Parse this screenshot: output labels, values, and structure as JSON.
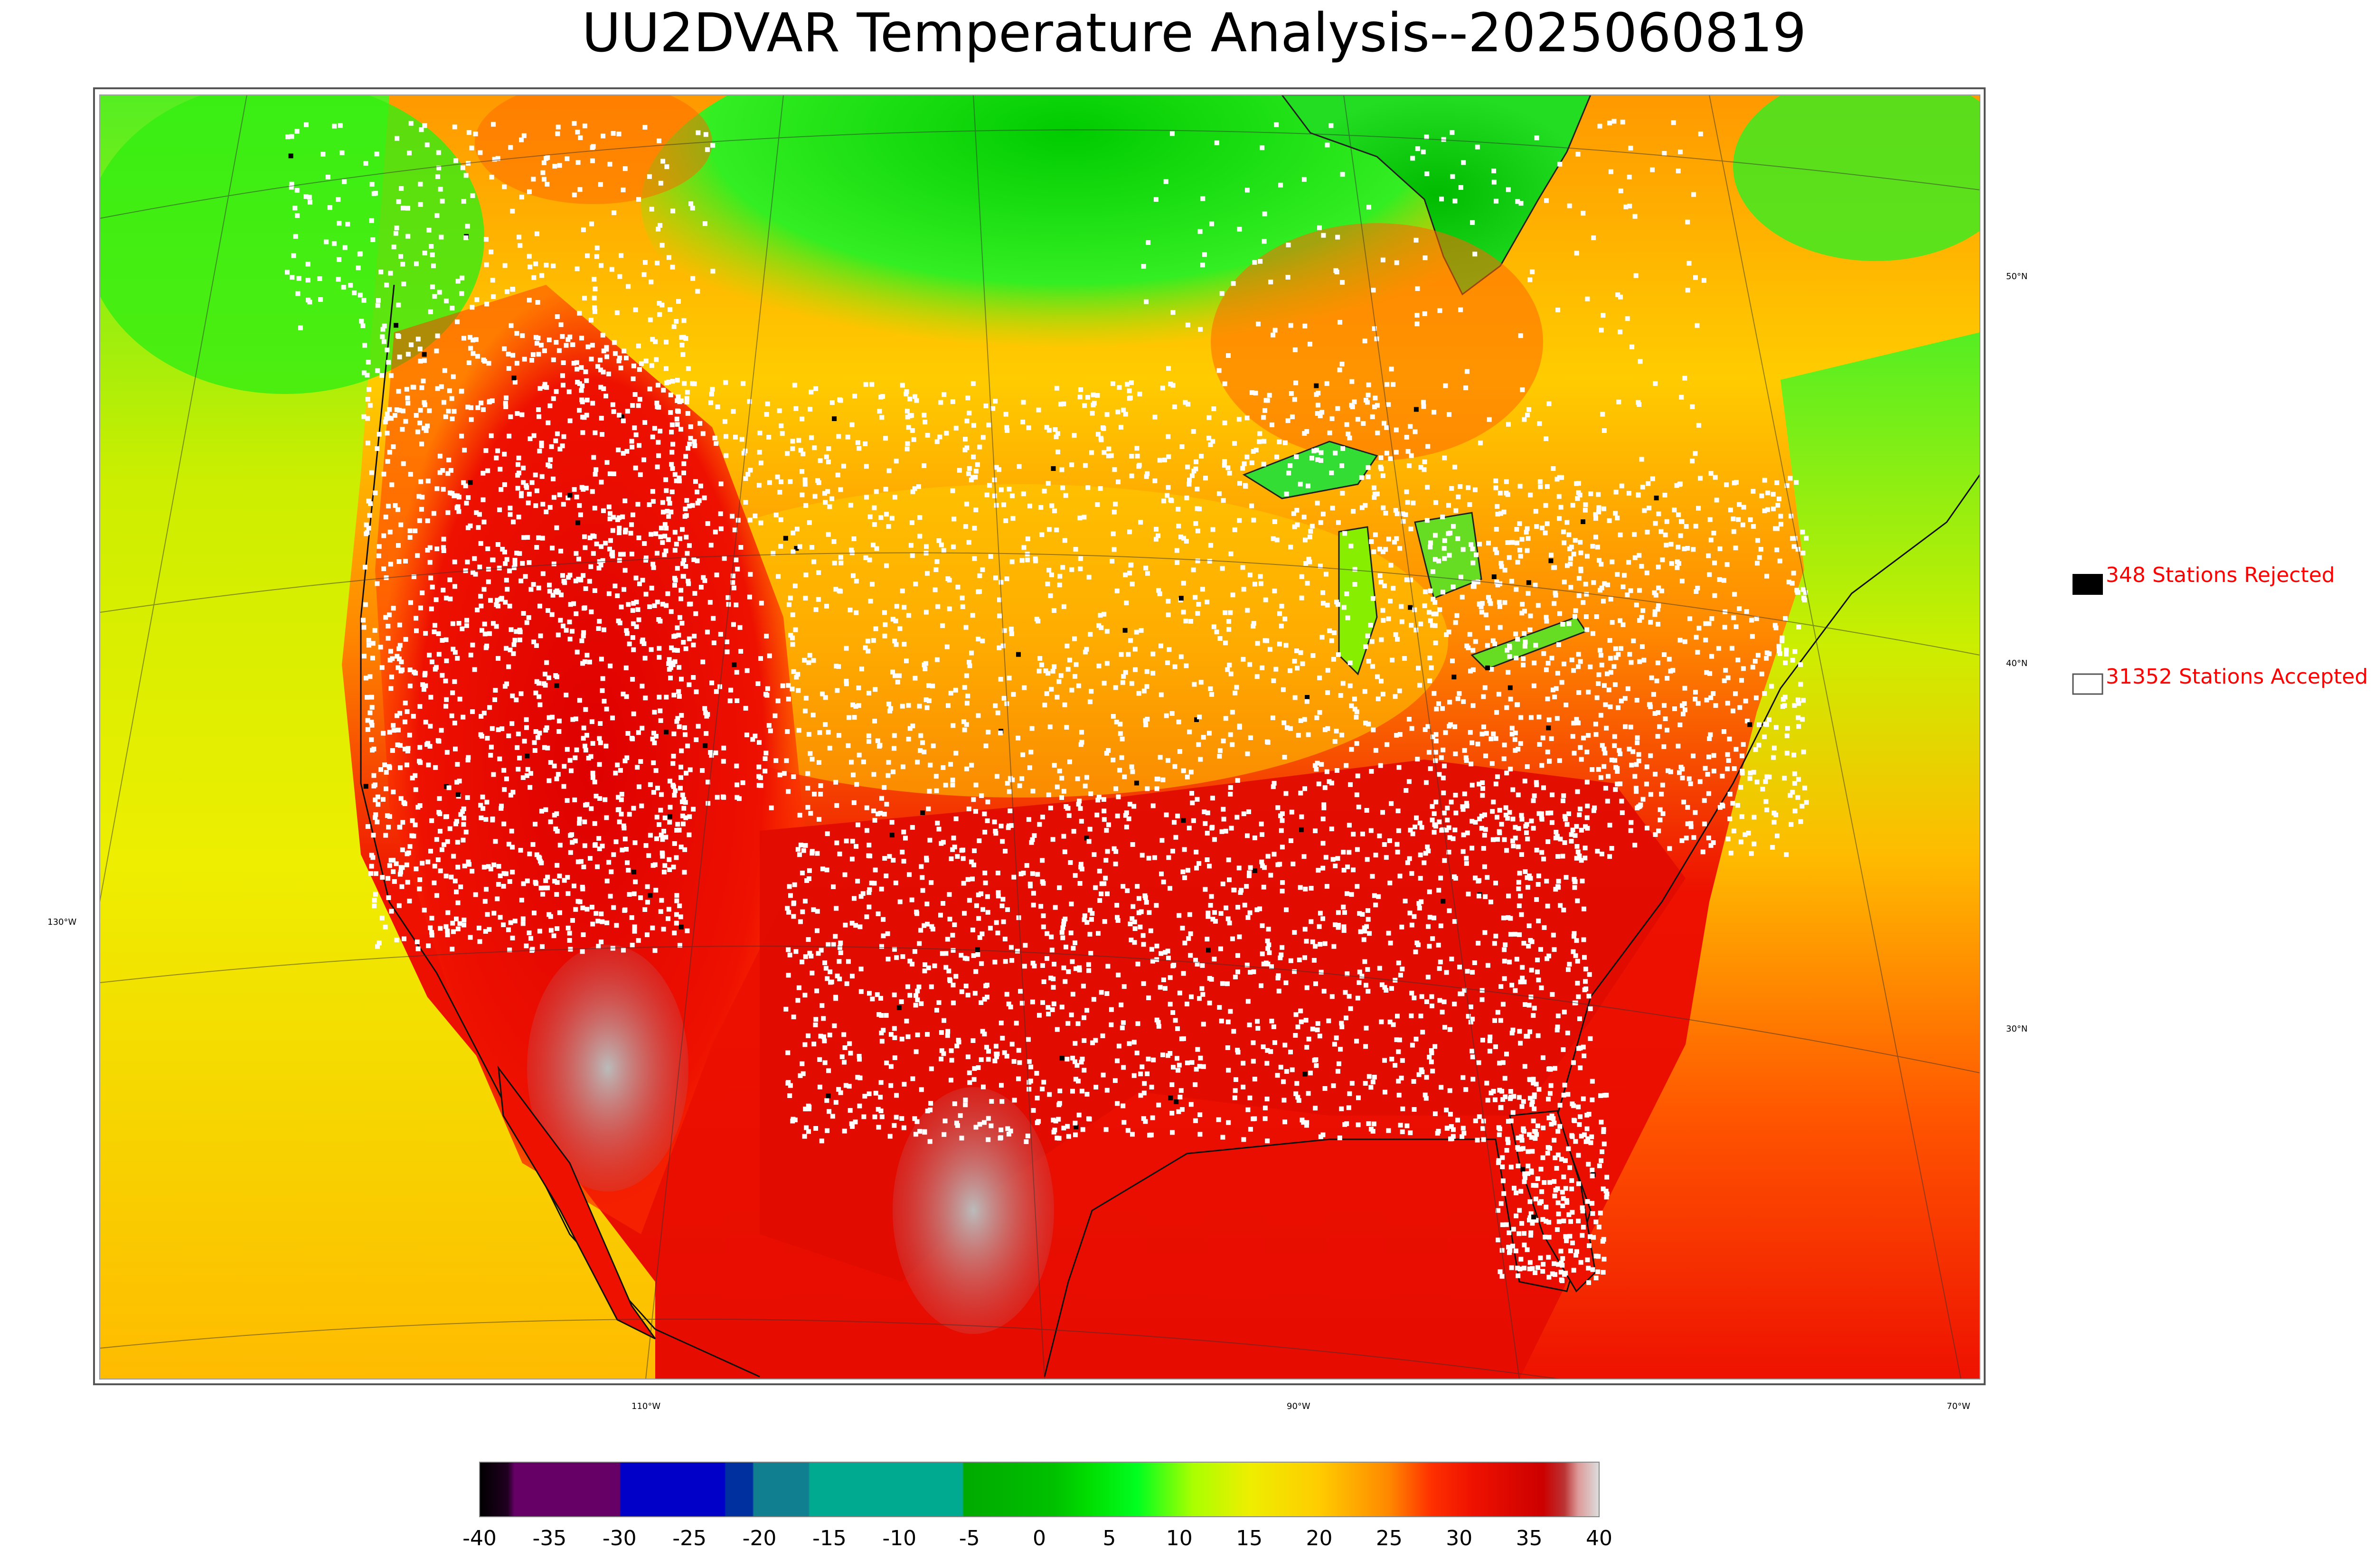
{
  "title": "UU2DVAR Temperature Analysis--2025060819",
  "map": {
    "lat_labels": [
      "50°N",
      "40°N",
      "30°N"
    ],
    "lon_labels": [
      "130°W",
      "110°W",
      "90°W",
      "70°W"
    ]
  },
  "legend": {
    "rejected": {
      "label": "348 Stations Rejected",
      "count": 348,
      "color": "#000000"
    },
    "accepted": {
      "label": "31352 Stations Accepted",
      "count": 31352,
      "color": "#ffffff"
    },
    "text_color": "#ff0000"
  },
  "colorbar": {
    "min": -40,
    "max": 40,
    "tick_labels": [
      "-40",
      "-35",
      "-30",
      "-25",
      "-20",
      "-15",
      "-10",
      "-5",
      "0",
      "5",
      "10",
      "15",
      "20",
      "25",
      "30",
      "35",
      "40"
    ],
    "stops": [
      {
        "value": -40,
        "color": "#000000"
      },
      {
        "value": -38,
        "color": "#200020"
      },
      {
        "value": -37.5,
        "color": "#660066"
      },
      {
        "value": -30,
        "color": "#660066"
      },
      {
        "value": -29.9,
        "color": "#0000c8"
      },
      {
        "value": -22.5,
        "color": "#0000c8"
      },
      {
        "value": -22.4,
        "color": "#0030a0"
      },
      {
        "value": -20.5,
        "color": "#0030a0"
      },
      {
        "value": -20.4,
        "color": "#108090"
      },
      {
        "value": -16.5,
        "color": "#108090"
      },
      {
        "value": -16.4,
        "color": "#00aa90"
      },
      {
        "value": -5.5,
        "color": "#00aa90"
      },
      {
        "value": -5.4,
        "color": "#00aa00"
      },
      {
        "value": 1,
        "color": "#00c000"
      },
      {
        "value": 3.5,
        "color": "#00dd00"
      },
      {
        "value": 7,
        "color": "#00ff20"
      },
      {
        "value": 11,
        "color": "#aaff00"
      },
      {
        "value": 15,
        "color": "#eeee00"
      },
      {
        "value": 20,
        "color": "#ffcc00"
      },
      {
        "value": 25,
        "color": "#ff8800"
      },
      {
        "value": 28,
        "color": "#ff3000"
      },
      {
        "value": 31,
        "color": "#ee1100"
      },
      {
        "value": 36,
        "color": "#cc0000"
      },
      {
        "value": 37.5,
        "color": "#bb3333"
      },
      {
        "value": 38.5,
        "color": "#dd9999"
      },
      {
        "value": 40,
        "color": "#dddddd"
      }
    ]
  }
}
